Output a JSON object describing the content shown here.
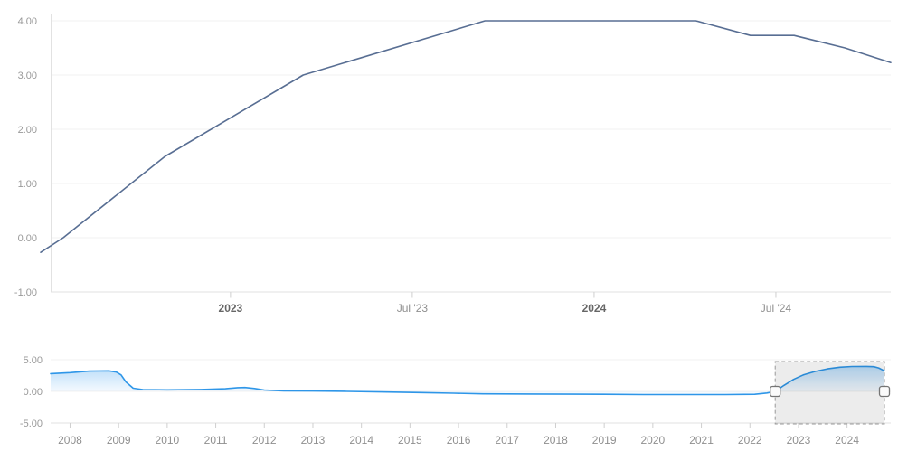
{
  "colors": {
    "main_line": "#586e93",
    "nav_line": "#2e96e8",
    "nav_fill": "#3399ee",
    "grid": "#f0f0f0",
    "axis": "#e2e2e2",
    "tick": "#cfcfcf",
    "y_label": "#999999",
    "x_label": "#8f8f8f",
    "x_label_bold": "#666666",
    "selection_fill": "rgba(0,0,0,0.075)",
    "selection_border": "#9a9a9a",
    "handle_fill": "#fbfbfb",
    "handle_border": "#757575"
  },
  "chart_data": [
    {
      "id": "main",
      "type": "line",
      "title": "",
      "xlabel": "",
      "ylabel": "",
      "ylim": [
        -1,
        4
      ],
      "xlim": [
        2022.478,
        2024.816
      ],
      "grid": true,
      "legend": false,
      "yticks": [
        {
          "v": 4,
          "label": "4.00"
        },
        {
          "v": 3,
          "label": "3.00"
        },
        {
          "v": 2,
          "label": "2.00"
        },
        {
          "v": 1,
          "label": "1.00"
        },
        {
          "v": 0,
          "label": "0.00"
        },
        {
          "v": -1,
          "label": "-1.00"
        }
      ],
      "xticks": [
        {
          "v": 2023.0,
          "label": "2023",
          "bold": true
        },
        {
          "v": 2023.5,
          "label": "Jul '23",
          "bold": false
        },
        {
          "v": 2024.0,
          "label": "2024",
          "bold": true
        },
        {
          "v": 2024.5,
          "label": "Jul '24",
          "bold": false
        }
      ],
      "series": [
        [
          2022.478,
          -0.27
        ],
        [
          2022.54,
          0.0
        ],
        [
          2022.82,
          1.5
        ],
        [
          2023.2,
          3.0
        ],
        [
          2023.7,
          4.0
        ],
        [
          2024.28,
          4.0
        ],
        [
          2024.43,
          3.73
        ],
        [
          2024.55,
          3.73
        ],
        [
          2024.69,
          3.5
        ],
        [
          2024.816,
          3.23
        ]
      ]
    },
    {
      "id": "navigator",
      "type": "area",
      "title": "",
      "ylim": [
        -5,
        5
      ],
      "xlim": [
        2007.6,
        2024.77
      ],
      "grid": true,
      "legend": false,
      "yticks": [
        {
          "v": 5,
          "label": "5.00"
        },
        {
          "v": 0,
          "label": "0.00"
        },
        {
          "v": -5,
          "label": "-5.00"
        }
      ],
      "xticks": [
        {
          "v": 2008,
          "label": "2008"
        },
        {
          "v": 2009,
          "label": "2009"
        },
        {
          "v": 2010,
          "label": "2010"
        },
        {
          "v": 2011,
          "label": "2011"
        },
        {
          "v": 2012,
          "label": "2012"
        },
        {
          "v": 2013,
          "label": "2013"
        },
        {
          "v": 2014,
          "label": "2014"
        },
        {
          "v": 2015,
          "label": "2015"
        },
        {
          "v": 2016,
          "label": "2016"
        },
        {
          "v": 2017,
          "label": "2017"
        },
        {
          "v": 2018,
          "label": "2018"
        },
        {
          "v": 2019,
          "label": "2019"
        },
        {
          "v": 2020,
          "label": "2020"
        },
        {
          "v": 2021,
          "label": "2021"
        },
        {
          "v": 2022,
          "label": "2022"
        },
        {
          "v": 2023,
          "label": "2023"
        },
        {
          "v": 2024,
          "label": "2024"
        }
      ],
      "series": [
        [
          2007.6,
          2.8
        ],
        [
          2008.0,
          2.95
        ],
        [
          2008.4,
          3.2
        ],
        [
          2008.8,
          3.25
        ],
        [
          2008.95,
          3.05
        ],
        [
          2009.05,
          2.6
        ],
        [
          2009.15,
          1.5
        ],
        [
          2009.3,
          0.5
        ],
        [
          2009.5,
          0.28
        ],
        [
          2010.0,
          0.25
        ],
        [
          2010.7,
          0.3
        ],
        [
          2011.2,
          0.42
        ],
        [
          2011.45,
          0.58
        ],
        [
          2011.6,
          0.62
        ],
        [
          2011.8,
          0.45
        ],
        [
          2012.0,
          0.22
        ],
        [
          2012.4,
          0.08
        ],
        [
          2013.0,
          0.05
        ],
        [
          2013.7,
          0.0
        ],
        [
          2014.4,
          -0.08
        ],
        [
          2015.2,
          -0.18
        ],
        [
          2015.9,
          -0.28
        ],
        [
          2016.5,
          -0.38
        ],
        [
          2017.5,
          -0.42
        ],
        [
          2019.0,
          -0.45
        ],
        [
          2019.8,
          -0.5
        ],
        [
          2021.5,
          -0.5
        ],
        [
          2022.1,
          -0.45
        ],
        [
          2022.35,
          -0.25
        ],
        [
          2022.52,
          0.0
        ],
        [
          2022.7,
          0.95
        ],
        [
          2022.9,
          1.9
        ],
        [
          2023.1,
          2.6
        ],
        [
          2023.35,
          3.15
        ],
        [
          2023.6,
          3.55
        ],
        [
          2023.85,
          3.82
        ],
        [
          2024.1,
          3.93
        ],
        [
          2024.4,
          3.95
        ],
        [
          2024.55,
          3.9
        ],
        [
          2024.65,
          3.7
        ],
        [
          2024.77,
          3.25
        ]
      ],
      "selection": {
        "start": 2022.52,
        "end": 2024.77
      }
    }
  ]
}
